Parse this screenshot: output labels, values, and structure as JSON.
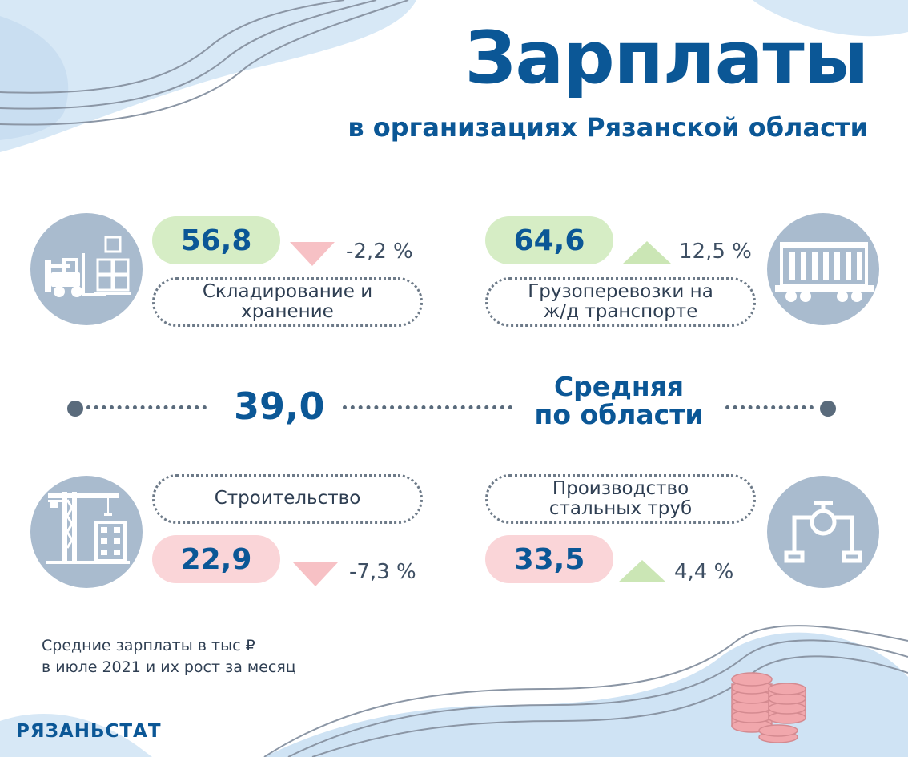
{
  "header": {
    "title": "Зарплаты",
    "subtitle": "в организациях Рязанской области"
  },
  "industries": [
    {
      "value": "56,8",
      "change": "-2,2 %",
      "label": "Складирование  и хранение",
      "trend": "down",
      "icon": "forklift-icon"
    },
    {
      "value": "64,6",
      "change": "12,5 %",
      "label": "Грузоперевозки на ж/д транспорте",
      "trend": "up",
      "icon": "railcar-icon"
    },
    {
      "value": "22,9",
      "change": "-7,3 %",
      "label": "Строительство",
      "trend": "down",
      "icon": "crane-icon"
    },
    {
      "value": "33,5",
      "change": "4,4 %",
      "label": "Производство стальных труб",
      "trend": "up",
      "icon": "pipe-icon"
    }
  ],
  "average": {
    "value": "39,0",
    "label_line1": "Средняя",
    "label_line2": "по области"
  },
  "footnote": {
    "line1": "Средние зарплаты в тыс ₽",
    "line2": "в июле 2021 и их рост за месяц"
  },
  "brand": "РЯЗАНЬСТАТ",
  "colors": {
    "brand_blue": "#0b5796",
    "growth_green": "#d6edc5",
    "decline_pink": "#fad5d8",
    "icon_circle": "#a9bbce"
  }
}
